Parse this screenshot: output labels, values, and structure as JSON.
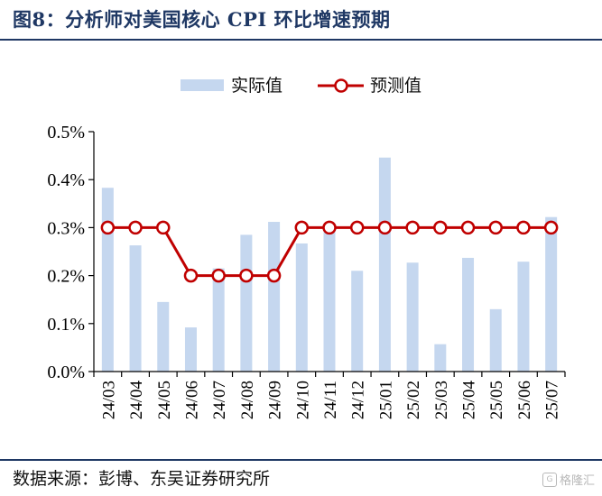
{
  "title": "图8：分析师对美国核心 CPI 环比增速预期",
  "source": "数据来源：彭博、东吴证券研究所",
  "watermark": "格隆汇",
  "chart_data": {
    "type": "bar",
    "categories": [
      "24/03",
      "24/04",
      "24/05",
      "24/06",
      "24/07",
      "24/08",
      "24/09",
      "24/10",
      "24/11",
      "24/12",
      "25/01",
      "25/02",
      "25/03",
      "25/04",
      "25/05",
      "25/06",
      "25/07"
    ],
    "series": [
      {
        "name": "实际值",
        "type": "bar",
        "color": "#c5d7ef",
        "values": [
          0.383,
          0.263,
          0.145,
          0.092,
          0.215,
          0.285,
          0.312,
          0.267,
          0.302,
          0.21,
          0.446,
          0.227,
          0.057,
          0.237,
          0.13,
          0.229,
          0.322
        ]
      },
      {
        "name": "预测值",
        "type": "line",
        "color": "#c00000",
        "values": [
          0.3,
          0.3,
          0.3,
          0.2,
          0.2,
          0.2,
          0.2,
          0.3,
          0.3,
          0.3,
          0.3,
          0.3,
          0.3,
          0.3,
          0.3,
          0.3,
          0.3
        ]
      }
    ],
    "ylim": [
      0,
      0.5
    ],
    "yticks": [
      "0.0%",
      "0.1%",
      "0.2%",
      "0.3%",
      "0.4%",
      "0.5%"
    ],
    "legend_position": "top-center",
    "grid": false
  }
}
